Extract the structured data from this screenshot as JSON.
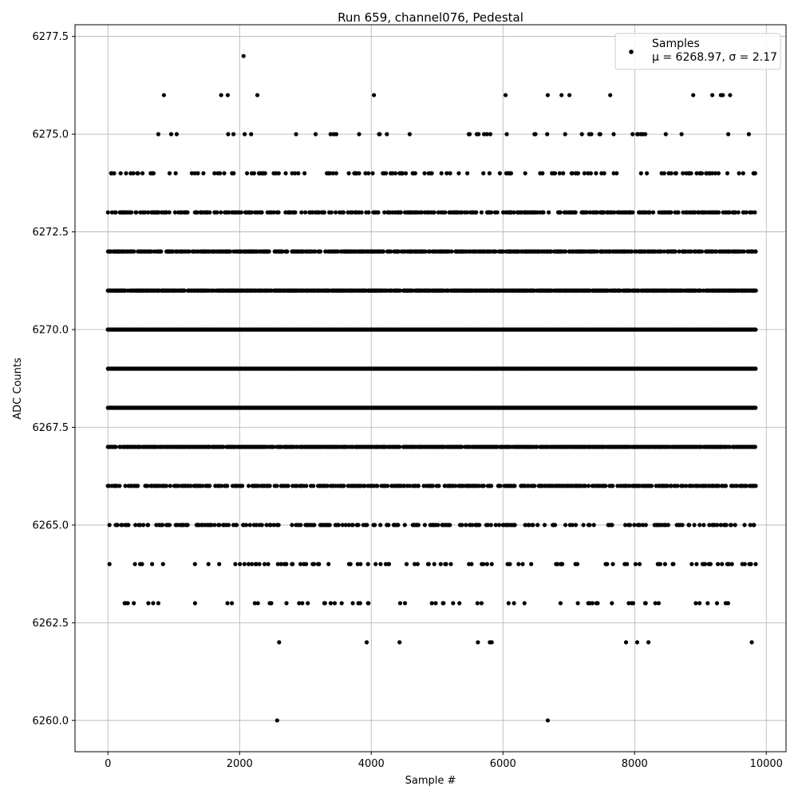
{
  "chart_data": {
    "type": "scatter",
    "title": "Run 659, channel076, Pedestal",
    "xlabel": "Sample #",
    "ylabel": "ADC Counts",
    "xlim": [
      -500,
      10300
    ],
    "ylim": [
      6259.2,
      6277.8
    ],
    "xticks": [
      0,
      2000,
      4000,
      6000,
      8000,
      10000
    ],
    "yticks": [
      6260.0,
      6262.5,
      6265.0,
      6267.5,
      6270.0,
      6272.5,
      6275.0,
      6277.5
    ],
    "xtick_labels": [
      "0",
      "2000",
      "4000",
      "6000",
      "8000",
      "10000"
    ],
    "ytick_labels": [
      "6260.0",
      "6262.5",
      "6265.0",
      "6267.5",
      "6270.0",
      "6272.5",
      "6275.0",
      "6277.5"
    ],
    "grid": true,
    "legend": {
      "placement": "top-right",
      "series_label": "Samples",
      "stats_label": "μ = 6268.97, σ = 2.17"
    },
    "marker_color": "#000000",
    "x_range": [
      0,
      9850
    ],
    "levels": [
      {
        "y": 6260,
        "density": 0
      },
      {
        "y": 6262,
        "density": 0
      },
      {
        "y": 6263,
        "density": 0.06
      },
      {
        "y": 6264,
        "density": 0.12
      },
      {
        "y": 6265,
        "density": 0.28
      },
      {
        "y": 6266,
        "density": 0.45
      },
      {
        "y": 6267,
        "density": 0.75
      },
      {
        "y": 6268,
        "density": 1.0
      },
      {
        "y": 6269,
        "density": 1.0
      },
      {
        "y": 6270,
        "density": 1.0
      },
      {
        "y": 6271,
        "density": 0.8
      },
      {
        "y": 6272,
        "density": 0.6
      },
      {
        "y": 6273,
        "density": 0.4
      },
      {
        "y": 6274,
        "density": 0.15
      },
      {
        "y": 6275,
        "density": 0.05
      },
      {
        "y": 6276,
        "density": 0
      }
    ],
    "sparse_points": [
      {
        "x": 2570,
        "y": 6260
      },
      {
        "x": 6680,
        "y": 6260
      },
      {
        "x": 2600,
        "y": 6262
      },
      {
        "x": 3930,
        "y": 6262
      },
      {
        "x": 4430,
        "y": 6262
      },
      {
        "x": 5620,
        "y": 6262
      },
      {
        "x": 5800,
        "y": 6262
      },
      {
        "x": 5830,
        "y": 6262
      },
      {
        "x": 7870,
        "y": 6262
      },
      {
        "x": 8040,
        "y": 6262
      },
      {
        "x": 8210,
        "y": 6262
      },
      {
        "x": 9780,
        "y": 6262
      },
      {
        "x": 850,
        "y": 6276
      },
      {
        "x": 1720,
        "y": 6276
      },
      {
        "x": 1820,
        "y": 6276
      },
      {
        "x": 2270,
        "y": 6276
      },
      {
        "x": 4040,
        "y": 6276
      },
      {
        "x": 6040,
        "y": 6276
      },
      {
        "x": 6680,
        "y": 6276
      },
      {
        "x": 6890,
        "y": 6276
      },
      {
        "x": 7010,
        "y": 6276
      },
      {
        "x": 7630,
        "y": 6276
      },
      {
        "x": 8890,
        "y": 6276
      },
      {
        "x": 9180,
        "y": 6276
      },
      {
        "x": 9310,
        "y": 6276
      },
      {
        "x": 9340,
        "y": 6276
      },
      {
        "x": 9450,
        "y": 6276
      },
      {
        "x": 2060,
        "y": 6277
      }
    ]
  }
}
